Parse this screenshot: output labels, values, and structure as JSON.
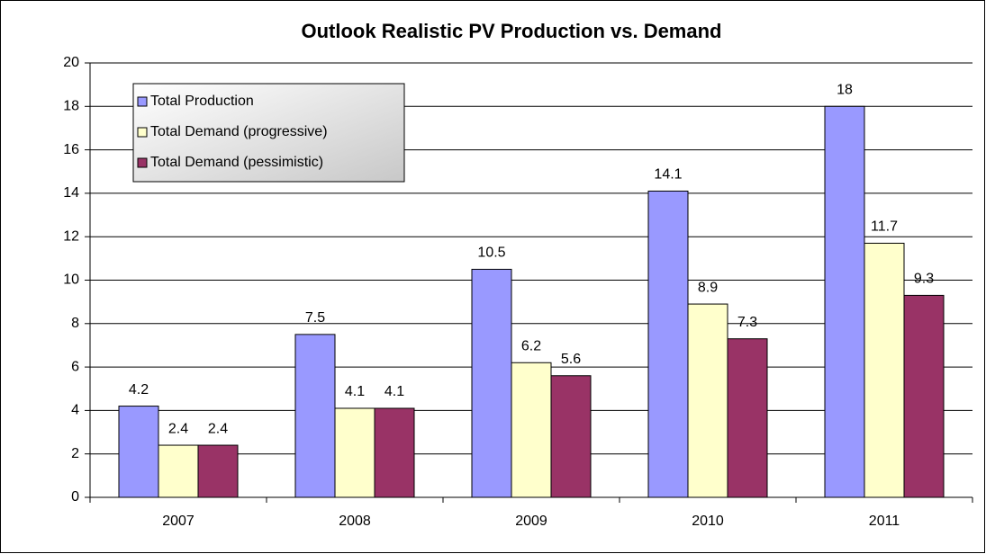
{
  "chart_data": {
    "type": "bar",
    "title": "Outlook Realistic PV Production vs. Demand",
    "categories": [
      "2007",
      "2008",
      "2009",
      "2010",
      "2011"
    ],
    "series": [
      {
        "name": "Total Production",
        "color": "#9999ff",
        "values": [
          4.2,
          7.5,
          10.5,
          14.1,
          18
        ]
      },
      {
        "name": "Total Demand (progressive)",
        "color": "#ffffcc",
        "values": [
          2.4,
          4.1,
          6.2,
          8.9,
          11.7
        ]
      },
      {
        "name": "Total Demand (pessimistic)",
        "color": "#993366",
        "values": [
          2.4,
          4.1,
          5.6,
          7.3,
          9.3
        ]
      }
    ],
    "ylim": [
      0,
      20
    ],
    "yticks": [
      0,
      2,
      4,
      6,
      8,
      10,
      12,
      14,
      16,
      18,
      20
    ],
    "grid": true,
    "legend": "top-left"
  }
}
